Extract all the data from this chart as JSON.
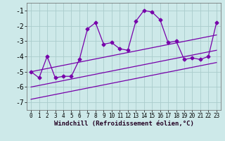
{
  "xlabel": "Windchill (Refroidissement éolien,°C)",
  "background_color": "#cde9e9",
  "grid_color": "#aacccc",
  "line_color": "#7700aa",
  "xlim": [
    -0.5,
    23.5
  ],
  "ylim": [
    -7.5,
    -0.5
  ],
  "yticks": [
    -7,
    -6,
    -5,
    -4,
    -3,
    -2,
    -1
  ],
  "xticks": [
    0,
    1,
    2,
    3,
    4,
    5,
    6,
    7,
    8,
    9,
    10,
    11,
    12,
    13,
    14,
    15,
    16,
    17,
    18,
    19,
    20,
    21,
    22,
    23
  ],
  "main_line_x": [
    0,
    1,
    2,
    3,
    4,
    5,
    6,
    7,
    8,
    9,
    10,
    11,
    12,
    13,
    14,
    15,
    16,
    17,
    18,
    19,
    20,
    21,
    22,
    23
  ],
  "main_line_y": [
    -5.0,
    -5.4,
    -4.0,
    -5.4,
    -5.3,
    -5.3,
    -4.2,
    -2.2,
    -1.8,
    -3.2,
    -3.1,
    -3.5,
    -3.6,
    -1.7,
    -1.0,
    -1.1,
    -1.6,
    -3.1,
    -3.0,
    -4.2,
    -4.1,
    -4.2,
    -4.0,
    -1.8
  ],
  "line1_x": [
    0,
    23
  ],
  "line1_y": [
    -5.0,
    -2.6
  ],
  "line2_x": [
    0,
    23
  ],
  "line2_y": [
    -6.0,
    -3.6
  ],
  "line3_x": [
    0,
    23
  ],
  "line3_y": [
    -6.8,
    -4.4
  ],
  "marker": "D",
  "markersize": 2.5,
  "linewidth": 0.9
}
